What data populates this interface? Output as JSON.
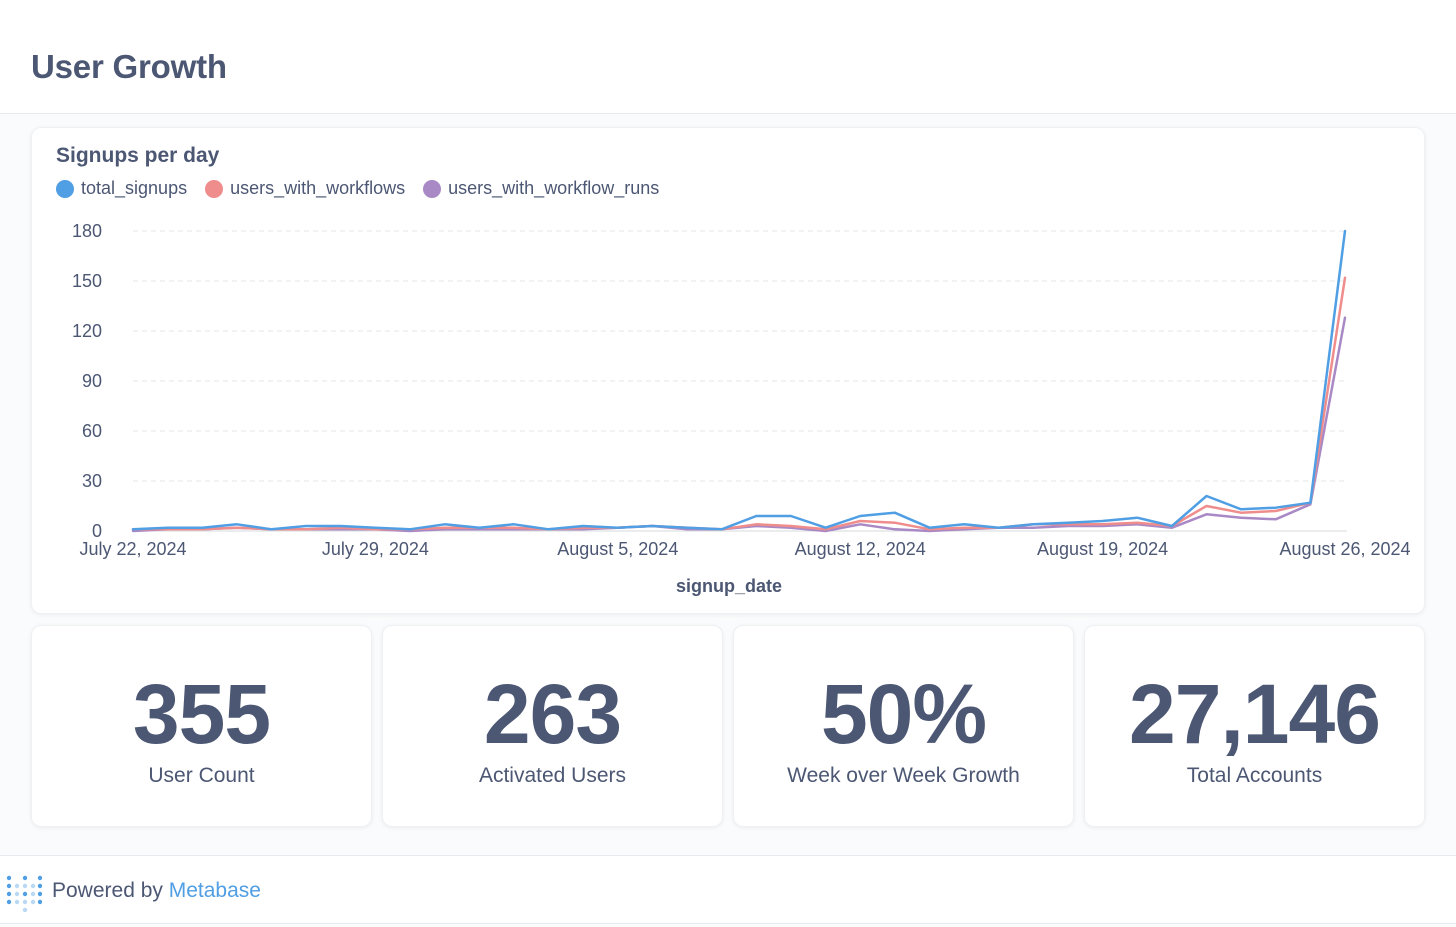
{
  "header": {
    "title": "User Growth"
  },
  "chart_data": {
    "type": "line",
    "title": "Signups per day",
    "xlabel": "signup_date",
    "ylabel": "",
    "ylim": [
      0,
      180
    ],
    "yticks": [
      0,
      30,
      60,
      90,
      120,
      150,
      180
    ],
    "xticks": [
      {
        "index": 0,
        "label": "July 22, 2024"
      },
      {
        "index": 7,
        "label": "July 29, 2024"
      },
      {
        "index": 14,
        "label": "August 5, 2024"
      },
      {
        "index": 21,
        "label": "August 12, 2024"
      },
      {
        "index": 28,
        "label": "August 19, 2024"
      },
      {
        "index": 35,
        "label": "August 26, 2024"
      }
    ],
    "grid": true,
    "legend_position": "top-left",
    "series": [
      {
        "name": "total_signups",
        "color": "#509ee3",
        "values": [
          1,
          2,
          2,
          4,
          1,
          3,
          3,
          2,
          1,
          4,
          2,
          4,
          1,
          3,
          2,
          3,
          2,
          1,
          9,
          9,
          2,
          9,
          11,
          2,
          4,
          2,
          4,
          5,
          6,
          8,
          3,
          21,
          13,
          14,
          17,
          180
        ]
      },
      {
        "name": "users_with_workflows",
        "color": "#ef8c8c",
        "values": [
          1,
          1,
          1,
          2,
          1,
          1,
          2,
          1,
          1,
          2,
          2,
          2,
          1,
          2,
          2,
          3,
          2,
          1,
          4,
          3,
          1,
          6,
          5,
          1,
          2,
          2,
          4,
          4,
          4,
          5,
          3,
          15,
          11,
          12,
          17,
          152
        ]
      },
      {
        "name": "users_with_workflow_runs",
        "color": "#a989c5",
        "values": [
          0,
          1,
          1,
          2,
          1,
          1,
          1,
          1,
          0,
          1,
          1,
          1,
          1,
          1,
          2,
          3,
          1,
          1,
          3,
          2,
          0,
          4,
          1,
          0,
          1,
          2,
          2,
          3,
          3,
          4,
          2,
          10,
          8,
          7,
          16,
          128
        ]
      }
    ]
  },
  "stats": [
    {
      "value": "355",
      "label": "User Count"
    },
    {
      "value": "263",
      "label": "Activated Users"
    },
    {
      "value": "50%",
      "label": "Week over Week Growth"
    },
    {
      "value": "27,146",
      "label": "Total Accounts"
    }
  ],
  "footer": {
    "powered_by": "Powered by",
    "brand": "Metabase",
    "logo_icon": "metabase-logo-icon"
  }
}
